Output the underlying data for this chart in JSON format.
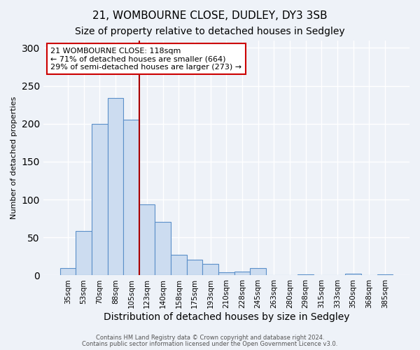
{
  "title": "21, WOMBOURNE CLOSE, DUDLEY, DY3 3SB",
  "subtitle": "Size of property relative to detached houses in Sedgley",
  "xlabel": "Distribution of detached houses by size in Sedgley",
  "ylabel": "Number of detached properties",
  "bar_labels": [
    "35sqm",
    "53sqm",
    "70sqm",
    "88sqm",
    "105sqm",
    "123sqm",
    "140sqm",
    "158sqm",
    "175sqm",
    "193sqm",
    "210sqm",
    "228sqm",
    "245sqm",
    "263sqm",
    "280sqm",
    "298sqm",
    "315sqm",
    "333sqm",
    "350sqm",
    "368sqm",
    "385sqm"
  ],
  "bar_values": [
    10,
    59,
    200,
    234,
    205,
    94,
    71,
    27,
    21,
    15,
    4,
    5,
    10,
    0,
    0,
    1,
    0,
    0,
    2,
    0,
    1
  ],
  "bar_color": "#ccdcf0",
  "bar_edge_color": "#5b8fc9",
  "vline_color": "#aa0000",
  "vline_x_index": 5,
  "ylim": [
    0,
    310
  ],
  "yticks": [
    0,
    50,
    100,
    150,
    200,
    250,
    300
  ],
  "annotation_text": "21 WOMBOURNE CLOSE: 118sqm\n← 71% of detached houses are smaller (664)\n29% of semi-detached houses are larger (273) →",
  "annotation_box_facecolor": "#ffffff",
  "annotation_box_edgecolor": "#cc0000",
  "footer_line1": "Contains HM Land Registry data © Crown copyright and database right 2024.",
  "footer_line2": "Contains public sector information licensed under the Open Government Licence v3.0.",
  "background_color": "#eef2f8",
  "plot_background": "#eef2f8",
  "grid_color": "#ffffff",
  "title_fontsize": 11,
  "subtitle_fontsize": 10,
  "xlabel_fontsize": 10,
  "ylabel_fontsize": 8
}
